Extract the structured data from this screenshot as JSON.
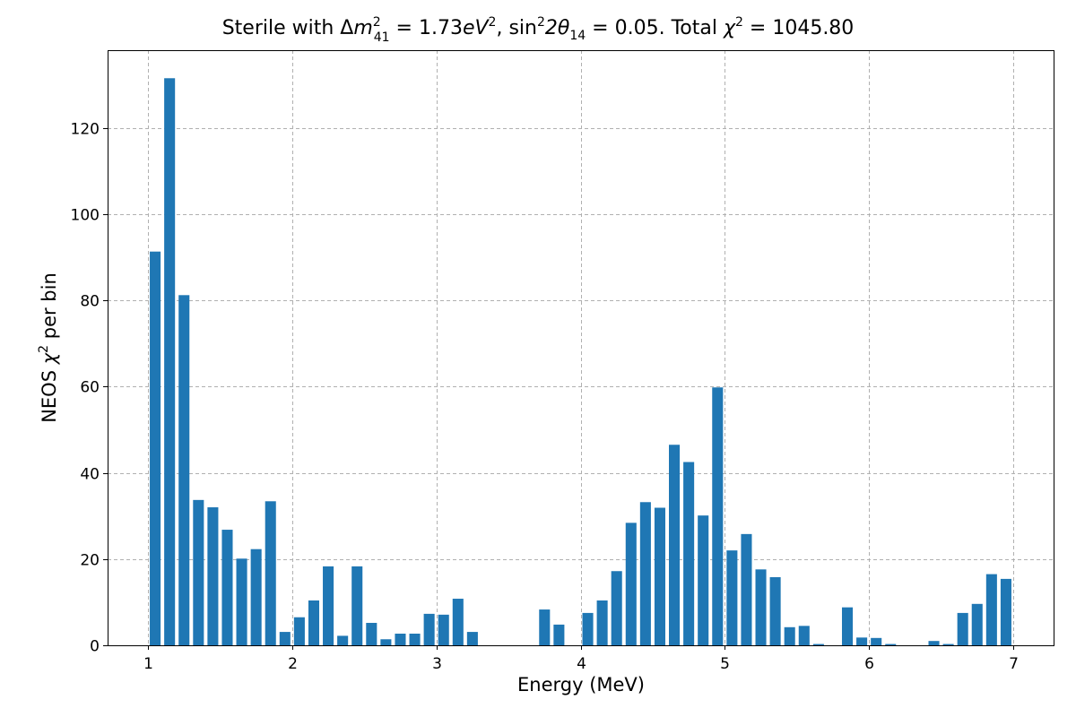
{
  "chart_data": {
    "type": "bar",
    "title_parts": {
      "prefix": "Sterile with Δ",
      "m": "m",
      "m_sup": "2",
      "m_sub": "41",
      "eq1": " = 1.73",
      "ev": "eV",
      "ev_sup": "2",
      "sep": ", sin",
      "sin_sup": "2",
      "two_theta": "2θ",
      "theta_sub": "14",
      "eq2": " = 0.05. Total ",
      "chi": "χ",
      "chi_sup": "2",
      "eq3": " = 1045.80"
    },
    "xlabel": "Energy (MeV)",
    "ylabel_parts": {
      "prefix": "NEOS ",
      "chi": "χ",
      "chi_sup": "2",
      "suffix": " per bin"
    },
    "xlim": [
      0.72,
      7.28
    ],
    "ylim": [
      0,
      138
    ],
    "xticks": [
      1,
      2,
      3,
      4,
      5,
      6,
      7
    ],
    "yticks": [
      0,
      20,
      40,
      60,
      80,
      100,
      120
    ],
    "bar_width": 0.075,
    "bar_color": "#1f77b4",
    "grid": true,
    "x": [
      1.05,
      1.15,
      1.25,
      1.35,
      1.45,
      1.55,
      1.65,
      1.75,
      1.85,
      1.95,
      2.05,
      2.15,
      2.25,
      2.35,
      2.45,
      2.55,
      2.65,
      2.75,
      2.85,
      2.95,
      3.05,
      3.15,
      3.25,
      3.35,
      3.45,
      3.55,
      3.65,
      3.75,
      3.85,
      3.95,
      4.05,
      4.15,
      4.25,
      4.35,
      4.45,
      4.55,
      4.65,
      4.75,
      4.85,
      4.95,
      5.05,
      5.15,
      5.25,
      5.35,
      5.45,
      5.55,
      5.65,
      5.75,
      5.85,
      5.95,
      6.05,
      6.15,
      6.25,
      6.35,
      6.45,
      6.55,
      6.65,
      6.75,
      6.85,
      6.95
    ],
    "values": [
      91.3,
      131.5,
      81.2,
      33.7,
      32.0,
      26.8,
      20.1,
      22.3,
      33.4,
      3.1,
      6.5,
      10.4,
      18.3,
      2.2,
      18.3,
      5.2,
      1.4,
      2.7,
      2.7,
      7.3,
      7.1,
      10.8,
      3.1,
      0.0,
      0.0,
      0.0,
      0.0,
      8.3,
      4.8,
      0.0,
      7.5,
      10.4,
      17.2,
      28.4,
      33.2,
      31.9,
      46.5,
      42.5,
      30.1,
      59.8,
      22.0,
      25.8,
      17.6,
      15.8,
      4.2,
      4.5,
      0.3,
      0.0,
      8.8,
      1.8,
      1.7,
      0.3,
      0.0,
      0.0,
      1.0,
      0.3,
      7.5,
      9.6,
      16.5,
      15.4
    ]
  }
}
